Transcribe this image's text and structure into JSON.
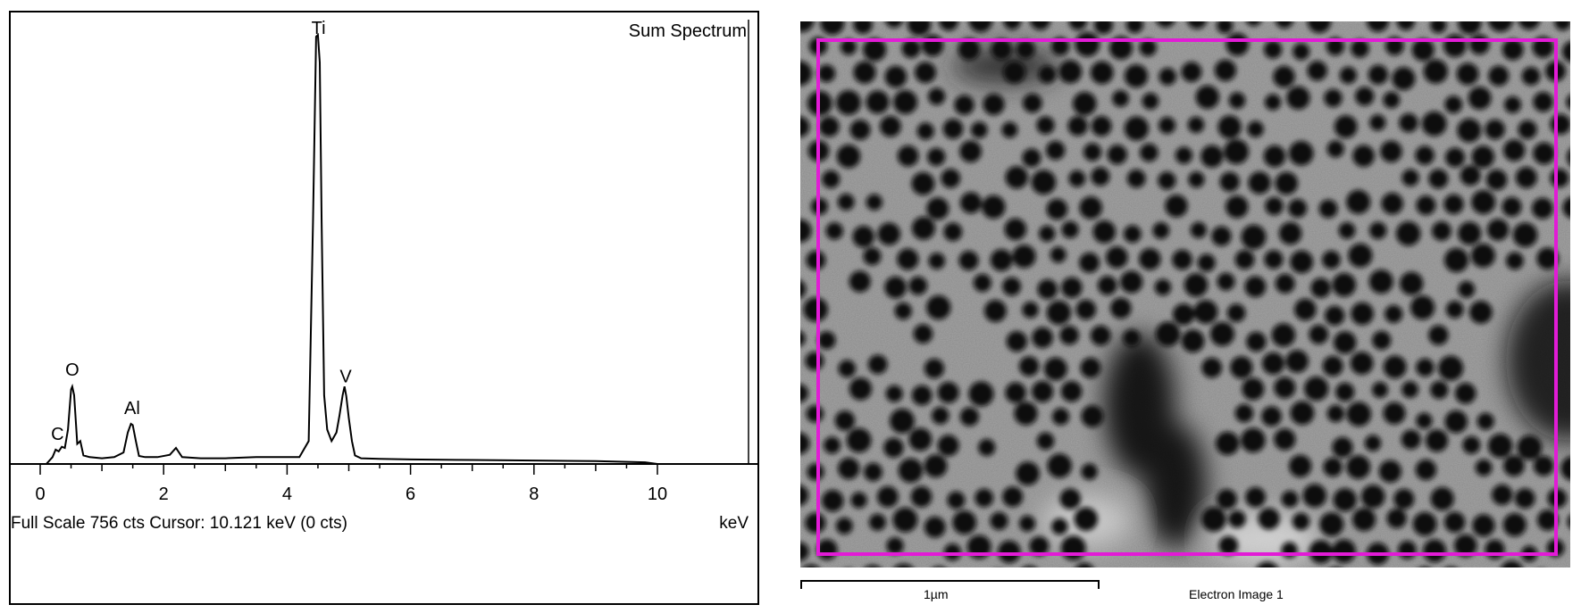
{
  "chart_data": {
    "type": "line",
    "title": "Sum Spectrum",
    "xlabel": "keV",
    "xlim": [
      0,
      10
    ],
    "ylim": [
      0,
      756
    ],
    "xticks": [
      0,
      2,
      4,
      6,
      8,
      10
    ],
    "tick_labels": [
      "0",
      "2",
      "4",
      "6",
      "8",
      "10"
    ],
    "grid": false,
    "series": [
      {
        "x": [
          0.1,
          0.2,
          0.25,
          0.3,
          0.35,
          0.4,
          0.45,
          0.5,
          0.52,
          0.55,
          0.6,
          0.65,
          0.7,
          0.8,
          1.0,
          1.2,
          1.35,
          1.42,
          1.47,
          1.5,
          1.55,
          1.6,
          1.7,
          1.9,
          2.1,
          2.2,
          2.3,
          2.6,
          3.0,
          3.5,
          3.9,
          4.2,
          4.35,
          4.42,
          4.47,
          4.5,
          4.53,
          4.56,
          4.6,
          4.65,
          4.72,
          4.8,
          4.85,
          4.9,
          4.93,
          4.96,
          5.0,
          5.05,
          5.1,
          5.2,
          5.5,
          6.0,
          7.0,
          8.0,
          9.0,
          9.8,
          10.0
        ],
        "y": [
          0,
          12,
          25,
          22,
          30,
          28,
          60,
          130,
          135,
          120,
          35,
          40,
          15,
          12,
          10,
          12,
          20,
          55,
          70,
          68,
          40,
          14,
          12,
          12,
          16,
          28,
          12,
          10,
          10,
          12,
          12,
          12,
          40,
          420,
          745,
          748,
          700,
          420,
          120,
          60,
          40,
          55,
          85,
          120,
          135,
          118,
          80,
          40,
          15,
          10,
          9,
          8,
          7,
          6,
          5,
          3,
          0
        ]
      }
    ],
    "peaks": [
      {
        "label": "C",
        "x": 0.28
      },
      {
        "label": "O",
        "x": 0.52
      },
      {
        "label": "Al",
        "x": 1.49
      },
      {
        "label": "Ti",
        "x": 4.51
      },
      {
        "label": "V",
        "x": 4.95
      }
    ],
    "status": "Full Scale 756 cts  Cursor: 10.121 keV (0 cts)"
  },
  "image": {
    "caption": "Electron Image 1",
    "scale_label": "1µm",
    "roi_color": "#e21bd6"
  }
}
